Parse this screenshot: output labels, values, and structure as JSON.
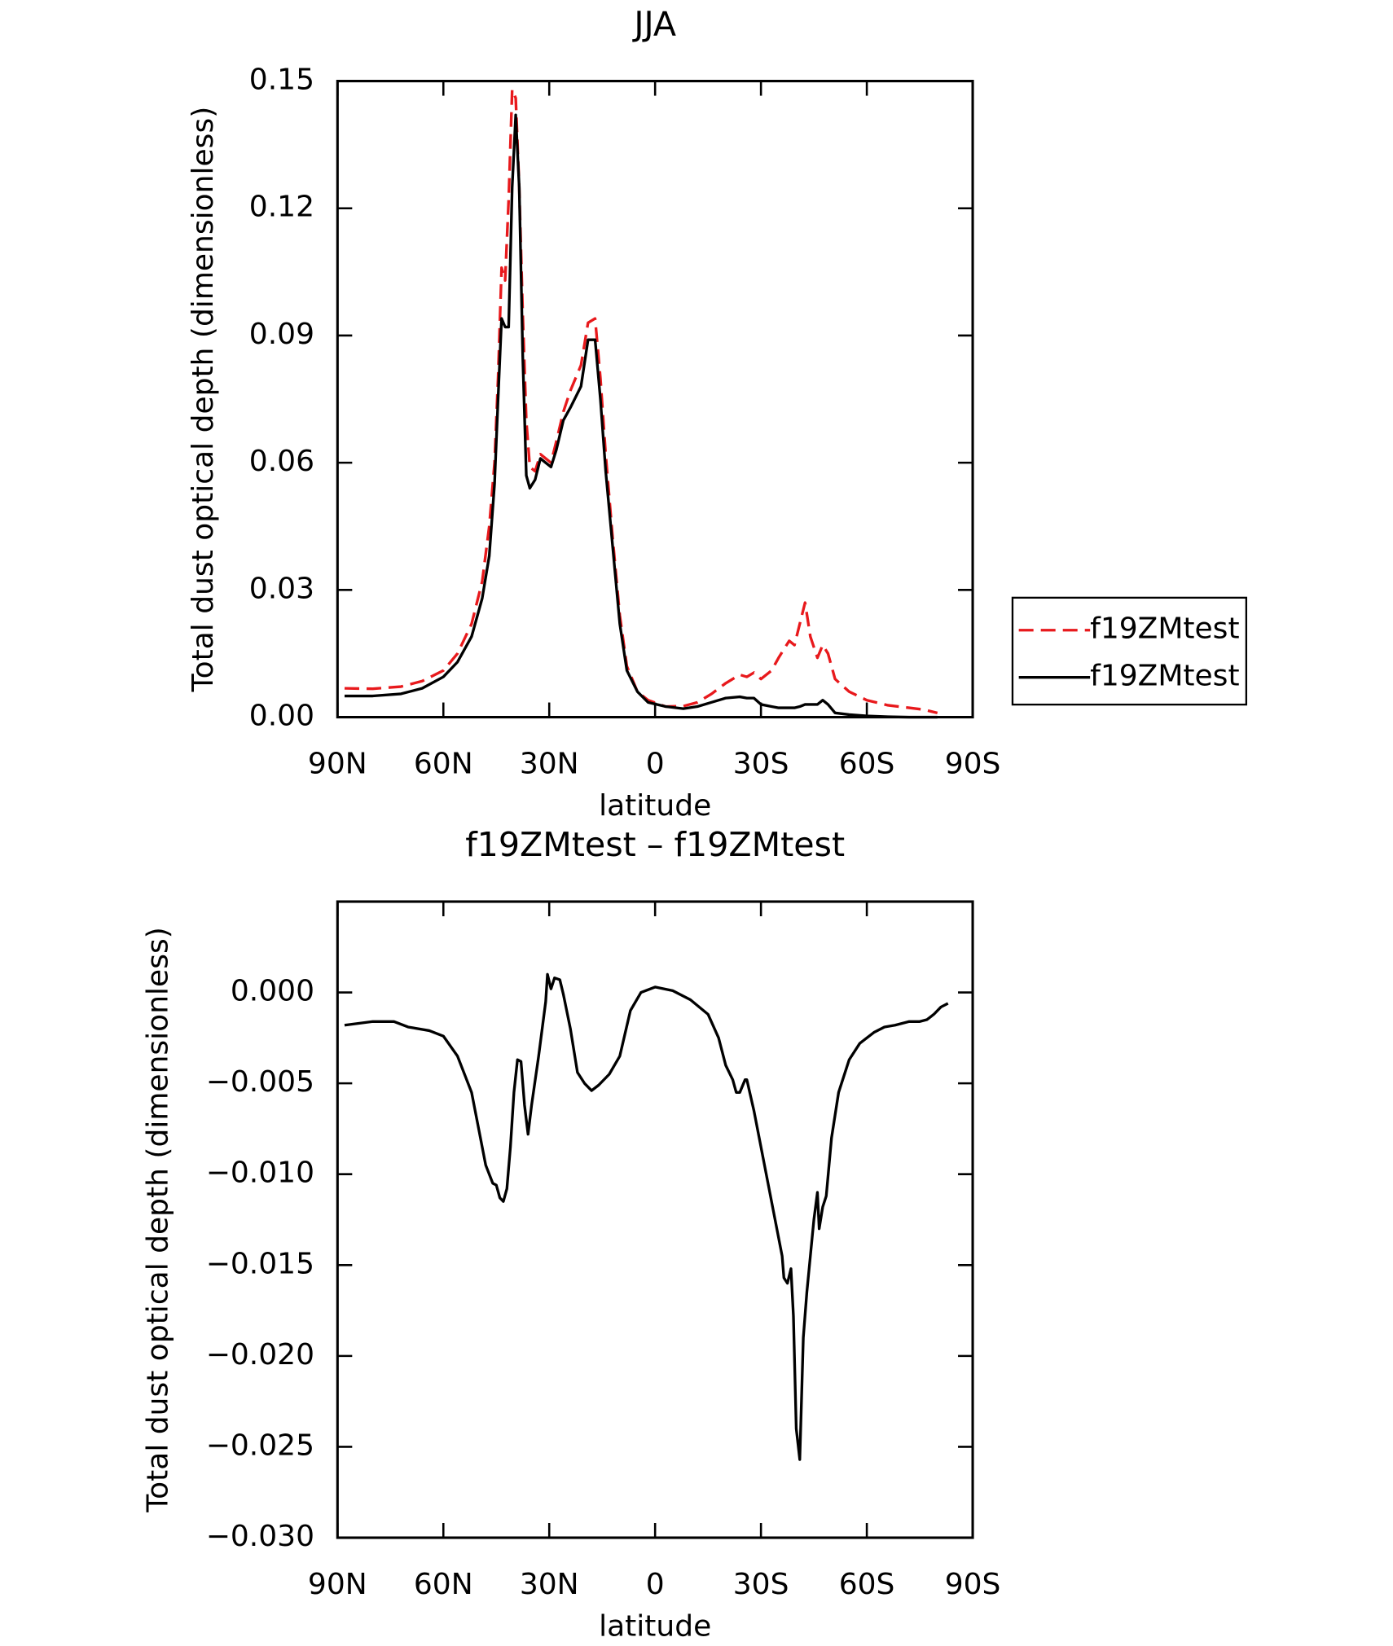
{
  "chart_data": [
    {
      "type": "line",
      "title": "JJA",
      "xlabel": "latitude",
      "ylabel": "Total dust optical depth (dimensionless)",
      "xlim": [
        90,
        -90
      ],
      "xticks": [
        {
          "value": 90,
          "label": "90N"
        },
        {
          "value": 60,
          "label": "60N"
        },
        {
          "value": 30,
          "label": "30N"
        },
        0,
        {
          "value": -30,
          "label": "30S"
        },
        {
          "value": -60,
          "label": "60S"
        },
        {
          "value": -90,
          "label": "90S"
        }
      ],
      "ylim": [
        0,
        0.15
      ],
      "yticks": [
        {
          "value": 0,
          "label": "0.00"
        },
        {
          "value": 0.03,
          "label": "0.03"
        },
        {
          "value": 0.06,
          "label": "0.06"
        },
        {
          "value": 0.09,
          "label": "0.09"
        },
        {
          "value": 0.12,
          "label": "0.12"
        },
        {
          "value": 0.15,
          "label": "0.15"
        }
      ],
      "legend": "right",
      "x": [
        88,
        80,
        72,
        66,
        60,
        56,
        52,
        49,
        47,
        45.5,
        44.5,
        43.5,
        42.5,
        41.5,
        40.5,
        39.5,
        38.5,
        37.5,
        36.5,
        35.5,
        34,
        32.5,
        31,
        29.5,
        28,
        26,
        24,
        21,
        19,
        17,
        15.5,
        14,
        12,
        10,
        8,
        5,
        2,
        -3,
        -8,
        -12,
        -16,
        -20,
        -24,
        -26,
        -28,
        -30,
        -33,
        -35,
        -38,
        -39.5,
        -41,
        -42.5,
        -44,
        -46,
        -47.5,
        -49,
        -51,
        -55,
        -60,
        -66,
        -72,
        -76,
        -80
      ],
      "series": [
        {
          "name": "f19ZMtest",
          "color": "#e8191c",
          "dash": true,
          "values": [
            0.0068,
            0.0067,
            0.0072,
            0.0085,
            0.011,
            0.015,
            0.022,
            0.032,
            0.045,
            0.06,
            0.08,
            0.106,
            0.103,
            0.122,
            0.148,
            0.146,
            0.125,
            0.095,
            0.07,
            0.059,
            0.058,
            0.062,
            0.061,
            0.06,
            0.065,
            0.072,
            0.077,
            0.083,
            0.093,
            0.094,
            0.08,
            0.062,
            0.042,
            0.024,
            0.012,
            0.006,
            0.004,
            0.0025,
            0.0026,
            0.0035,
            0.0055,
            0.008,
            0.01,
            0.0095,
            0.0105,
            0.009,
            0.011,
            0.014,
            0.018,
            0.017,
            0.022,
            0.027,
            0.019,
            0.014,
            0.017,
            0.015,
            0.009,
            0.006,
            0.004,
            0.0028,
            0.0022,
            0.0018,
            0.001
          ]
        },
        {
          "name": "f19ZMtest",
          "color": "#000000",
          "dash": false,
          "values": [
            0.005,
            0.005,
            0.0055,
            0.0068,
            0.0095,
            0.013,
            0.019,
            0.028,
            0.038,
            0.055,
            0.075,
            0.094,
            0.092,
            0.092,
            0.125,
            0.142,
            0.125,
            0.085,
            0.057,
            0.054,
            0.056,
            0.061,
            0.06,
            0.059,
            0.063,
            0.07,
            0.073,
            0.078,
            0.089,
            0.089,
            0.075,
            0.058,
            0.04,
            0.022,
            0.011,
            0.006,
            0.0035,
            0.0025,
            0.002,
            0.0025,
            0.0035,
            0.0045,
            0.0048,
            0.0045,
            0.0045,
            0.003,
            0.0025,
            0.0022,
            0.0022,
            0.0022,
            0.0025,
            0.003,
            0.003,
            0.003,
            0.004,
            0.003,
            0.001,
            0.0006,
            0.0003,
            0.0001,
            0,
            0,
            0
          ]
        }
      ]
    },
    {
      "type": "line",
      "title": "f19ZMtest – f19ZMtest",
      "xlabel": "latitude",
      "ylabel": "Total dust optical depth (dimensionless)",
      "xlim": [
        90,
        -90
      ],
      "xticks": [
        {
          "value": 90,
          "label": "90N"
        },
        {
          "value": 60,
          "label": "60N"
        },
        {
          "value": 30,
          "label": "30N"
        },
        0,
        {
          "value": -30,
          "label": "30S"
        },
        {
          "value": -60,
          "label": "60S"
        },
        {
          "value": -90,
          "label": "90S"
        }
      ],
      "ylim": [
        -0.03,
        0.005
      ],
      "yticks": [
        {
          "value": -0.03,
          "label": "−0.030"
        },
        {
          "value": -0.025,
          "label": "−0.025"
        },
        {
          "value": -0.02,
          "label": "−0.020"
        },
        {
          "value": -0.015,
          "label": "−0.015"
        },
        {
          "value": -0.01,
          "label": "−0.010"
        },
        {
          "value": -0.005,
          "label": "−0.005"
        },
        {
          "value": 0,
          "label": "0.000"
        }
      ],
      "x": [
        88,
        84,
        80,
        74,
        70,
        64,
        60,
        56,
        52,
        50,
        48,
        46,
        45,
        44,
        43,
        42,
        41,
        40,
        39,
        38,
        37,
        36,
        35,
        33,
        31,
        30.5,
        29.5,
        28.5,
        27,
        26,
        24,
        22,
        20,
        18,
        16,
        13,
        10,
        7,
        4,
        0,
        -5,
        -10,
        -15,
        -18,
        -20,
        -22,
        -23,
        -24,
        -25.5,
        -26,
        -28,
        -31,
        -34,
        -36,
        -36.5,
        -37.5,
        -38.5,
        -39.2,
        -40,
        -41,
        -42,
        -43,
        -44,
        -45,
        -46,
        -46.5,
        -47.5,
        -48.5,
        -50,
        -52,
        -55,
        -58,
        -62,
        -65,
        -68,
        -72,
        -75,
        -77,
        -79,
        -81,
        -83
      ],
      "series": [
        {
          "color": "#000000",
          "dash": false,
          "values": [
            -0.0018,
            -0.0017,
            -0.0016,
            -0.0016,
            -0.0019,
            -0.0021,
            -0.0024,
            -0.0035,
            -0.0055,
            -0.0075,
            -0.0095,
            -0.0105,
            -0.0106,
            -0.0113,
            -0.0115,
            -0.0108,
            -0.0085,
            -0.0055,
            -0.0037,
            -0.0038,
            -0.0062,
            -0.0078,
            -0.0062,
            -0.0035,
            -0.0005,
            0.001,
            0.0002,
            0.0008,
            0.0007,
            -0.0001,
            -0.002,
            -0.0044,
            -0.005,
            -0.0054,
            -0.0051,
            -0.0045,
            -0.0035,
            -0.001,
            0,
            0.0003,
            0.0001,
            -0.0004,
            -0.0012,
            -0.0025,
            -0.004,
            -0.0048,
            -0.0055,
            -0.0055,
            -0.0048,
            -0.0048,
            -0.0065,
            -0.0095,
            -0.0125,
            -0.0145,
            -0.0157,
            -0.016,
            -0.0152,
            -0.0178,
            -0.024,
            -0.0257,
            -0.019,
            -0.0165,
            -0.0145,
            -0.0125,
            -0.011,
            -0.013,
            -0.0118,
            -0.0112,
            -0.008,
            -0.0055,
            -0.0037,
            -0.0028,
            -0.0022,
            -0.0019,
            -0.0018,
            -0.0016,
            -0.0016,
            -0.0015,
            -0.0012,
            -0.0008,
            -0.0006
          ]
        }
      ]
    }
  ]
}
